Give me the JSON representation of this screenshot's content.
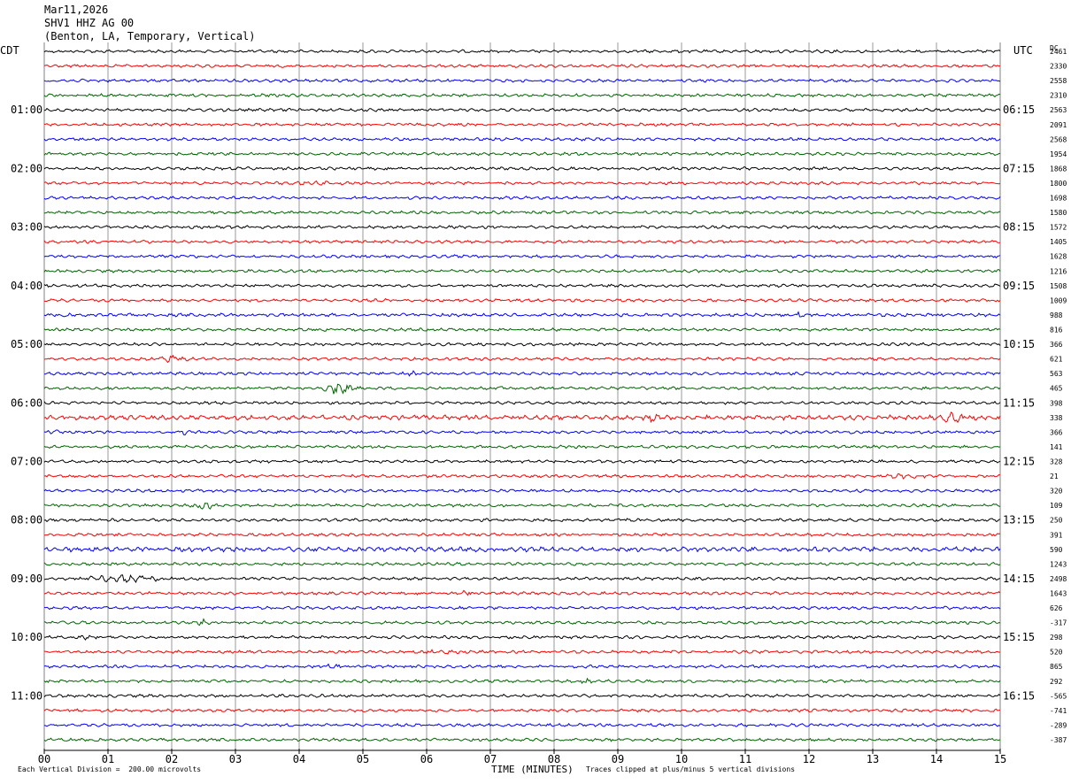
{
  "header": {
    "date": "Mar11,2026",
    "station": "SHV1 HHZ AG 00",
    "location": "(Benton, LA, Temporary, Vertical)"
  },
  "left_tz": "CDT",
  "right_tz": "UTC",
  "dc_header": "DC",
  "colors": {
    "black": "#000000",
    "red": "#ff0000",
    "blue": "#0000ff",
    "green": "#006400",
    "grid": "#808080"
  },
  "footer": {
    "left": "Each Vertical Division =  200.00 microvolts",
    "center": "TIME (MINUTES)",
    "right": "Traces clipped at plus/minus 5 vertical divisions"
  },
  "chart_data": {
    "type": "line",
    "title": "SHV1 HHZ AG 00",
    "xlabel": "TIME (MINUTES)",
    "xlim": [
      0,
      15
    ],
    "x_ticks": [
      "00",
      "01",
      "02",
      "03",
      "04",
      "05",
      "06",
      "07",
      "08",
      "09",
      "10",
      "11",
      "12",
      "13",
      "14",
      "15"
    ],
    "trace_color_cycle": [
      "black",
      "red",
      "blue",
      "green"
    ],
    "left_hour_labels": [
      "01:00",
      "02:00",
      "03:00",
      "04:00",
      "05:00",
      "06:00",
      "07:00",
      "08:00",
      "09:00",
      "10:00",
      "11:00"
    ],
    "right_hour_labels": [
      "06:15",
      "07:15",
      "08:15",
      "09:15",
      "10:15",
      "11:15",
      "12:15",
      "13:15",
      "14:15",
      "15:15",
      "16:15"
    ],
    "dc_offsets": [
      "2461",
      "2330",
      "2558",
      "2310",
      "2563",
      "2091",
      "2568",
      "1954",
      "1868",
      "1800",
      "1698",
      "1580",
      "1572",
      "1405",
      "1628",
      "1216",
      "1508",
      "1009",
      "988",
      "816",
      "366",
      "621",
      "563",
      "465",
      "398",
      "338",
      "366",
      "141",
      "328",
      "21",
      "320",
      "109",
      "250",
      "391",
      "590",
      "1243",
      "2498",
      "1643",
      "626",
      "-317",
      "298",
      "520",
      "865",
      "292",
      "-565",
      "-741",
      "-289",
      "-387"
    ],
    "events": [
      {
        "trace": 0,
        "start_min": 0.0,
        "end_min": 1.8,
        "amp": 1.0
      },
      {
        "trace": 9,
        "start_min": 2.0,
        "end_min": 6.5,
        "amp": 1.4
      },
      {
        "trace": 18,
        "start_min": 0.0,
        "end_min": 15.0,
        "amp": 1.1
      },
      {
        "trace": 18,
        "start_min": 11.8,
        "end_min": 11.9,
        "amp": 3.0
      },
      {
        "trace": 21,
        "start_min": 1.6,
        "end_min": 2.4,
        "amp": 3.5
      },
      {
        "trace": 22,
        "start_min": 5.5,
        "end_min": 6.0,
        "amp": 2.2
      },
      {
        "trace": 23,
        "start_min": 4.2,
        "end_min": 5.0,
        "amp": 4.5
      },
      {
        "trace": 23,
        "start_min": 6.8,
        "end_min": 7.6,
        "amp": 1.6
      },
      {
        "trace": 24,
        "start_min": 0.0,
        "end_min": 15.0,
        "amp": 1.0
      },
      {
        "trace": 25,
        "start_min": 0.0,
        "end_min": 15.0,
        "amp": 1.6
      },
      {
        "trace": 25,
        "start_min": 14.0,
        "end_min": 14.6,
        "amp": 6.0
      },
      {
        "trace": 25,
        "start_min": 9.2,
        "end_min": 9.8,
        "amp": 3.5
      },
      {
        "trace": 26,
        "start_min": 0.0,
        "end_min": 0.3,
        "amp": 2.2
      },
      {
        "trace": 26,
        "start_min": 2.0,
        "end_min": 2.4,
        "amp": 2.0
      },
      {
        "trace": 29,
        "start_min": 12.4,
        "end_min": 14.6,
        "amp": 1.8
      },
      {
        "trace": 31,
        "start_min": 2.0,
        "end_min": 3.0,
        "amp": 3.2
      },
      {
        "trace": 34,
        "start_min": 0.0,
        "end_min": 15.0,
        "amp": 1.6
      },
      {
        "trace": 35,
        "start_min": 4.3,
        "end_min": 5.0,
        "amp": 1.5
      },
      {
        "trace": 36,
        "start_min": 0.0,
        "end_min": 2.6,
        "amp": 2.8
      },
      {
        "trace": 37,
        "start_min": 6.3,
        "end_min": 6.9,
        "amp": 2.6
      },
      {
        "trace": 39,
        "start_min": 2.3,
        "end_min": 2.7,
        "amp": 2.6
      },
      {
        "trace": 40,
        "start_min": 0.4,
        "end_min": 0.8,
        "amp": 2.6
      },
      {
        "trace": 41,
        "start_min": 5.0,
        "end_min": 7.5,
        "amp": 1.7
      },
      {
        "trace": 42,
        "start_min": 4.0,
        "end_min": 5.0,
        "amp": 2.0
      },
      {
        "trace": 43,
        "start_min": 8.2,
        "end_min": 8.8,
        "amp": 2.3
      }
    ]
  }
}
